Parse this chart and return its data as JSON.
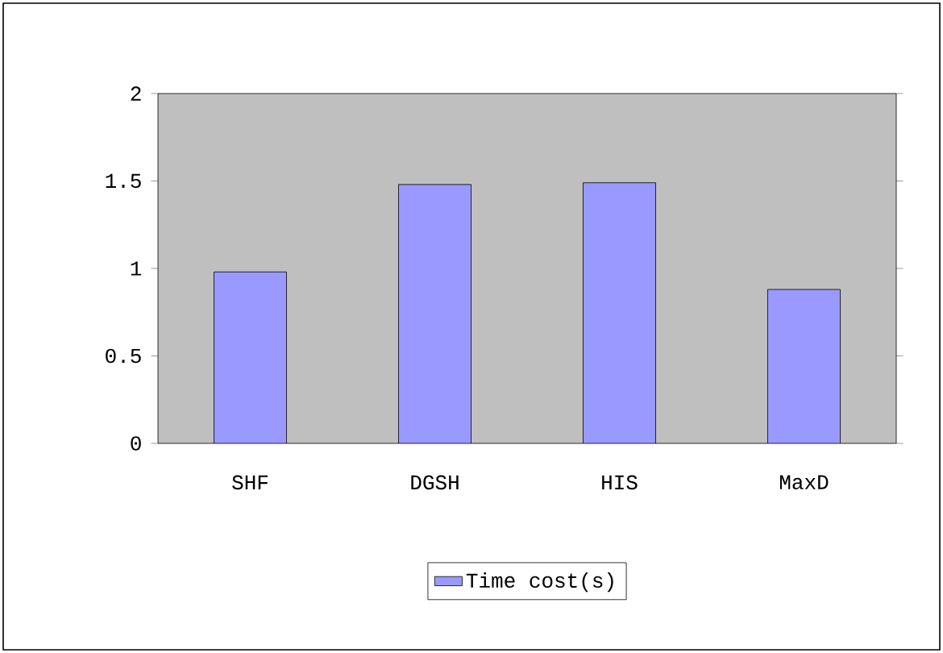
{
  "chart_data": {
    "type": "bar",
    "categories": [
      "SHF",
      "DGSH",
      "HIS",
      "MaxD"
    ],
    "series": [
      {
        "name": "Time cost(s)",
        "color": "#9999ff",
        "values": [
          0.98,
          1.48,
          1.49,
          0.88
        ]
      }
    ],
    "ylim": [
      0,
      2
    ],
    "yticks": [
      0,
      {
        "value": 0.5,
        "label": "0.5"
      },
      1,
      {
        "value": 1.5,
        "label": "1.5"
      },
      2
    ],
    "grid": false,
    "legend": "bottom"
  }
}
